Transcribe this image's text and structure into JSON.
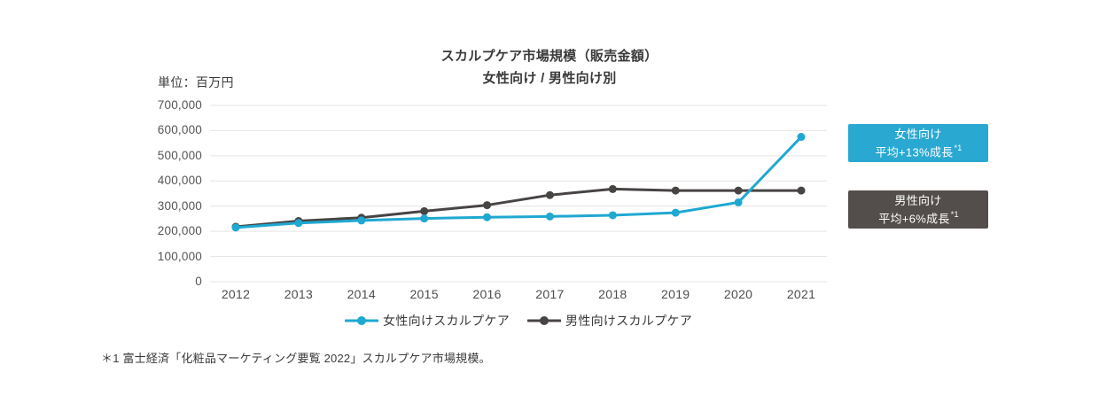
{
  "title": {
    "line1": "スカルプケア市場規模（販売金額）",
    "line2": "女性向け / 男性向け別"
  },
  "unit_label": "単位：百万円",
  "chart_data": {
    "type": "line",
    "categories": [
      "2012",
      "2013",
      "2014",
      "2015",
      "2016",
      "2017",
      "2018",
      "2019",
      "2020",
      "2021"
    ],
    "series": [
      {
        "name": "女性向けスカルプケア",
        "color": "#1fa8d2",
        "values": [
          215000,
          233000,
          243000,
          251000,
          256000,
          259000,
          264000,
          274000,
          315000,
          575000
        ]
      },
      {
        "name": "男性向けスカルプケア",
        "color": "#474443",
        "values": [
          218000,
          241000,
          254000,
          280000,
          304000,
          344000,
          368000,
          362000,
          362000,
          362000
        ]
      }
    ],
    "title": "スカルプケア市場規模（販売金額） 女性向け / 男性向け別",
    "xlabel": "",
    "ylabel": "単位：百万円",
    "ylim": [
      0,
      700000
    ],
    "yticks": [
      700000,
      600000,
      500000,
      400000,
      300000,
      200000,
      100000,
      0
    ],
    "ytick_labels": [
      "700,000",
      "600,000",
      "500,000",
      "400,000",
      "300,000",
      "200,000",
      "100,000",
      "0"
    ],
    "grid": "horizontal",
    "gridline_color": "#e4e4e4",
    "legend_position": "bottom"
  },
  "legend": {
    "items": [
      {
        "label": "女性向けスカルプケア",
        "color": "#1fa8d2"
      },
      {
        "label": "男性向けスカルプケア",
        "color": "#474443"
      }
    ]
  },
  "annotations": {
    "female": {
      "line1": "女性向け",
      "line2": "平均+13%成長",
      "ref": "*1",
      "bg": "#29a9d2",
      "text_color": "#ffffff"
    },
    "male": {
      "line1": "男性向け",
      "line2": "平均+6%成長",
      "ref": "*1",
      "bg": "#534e4b",
      "text_color": "#ffffff"
    }
  },
  "footnote": "＊1 富士経済「化粧品マーケティング要覧 2022」スカルプケア市場規模。"
}
